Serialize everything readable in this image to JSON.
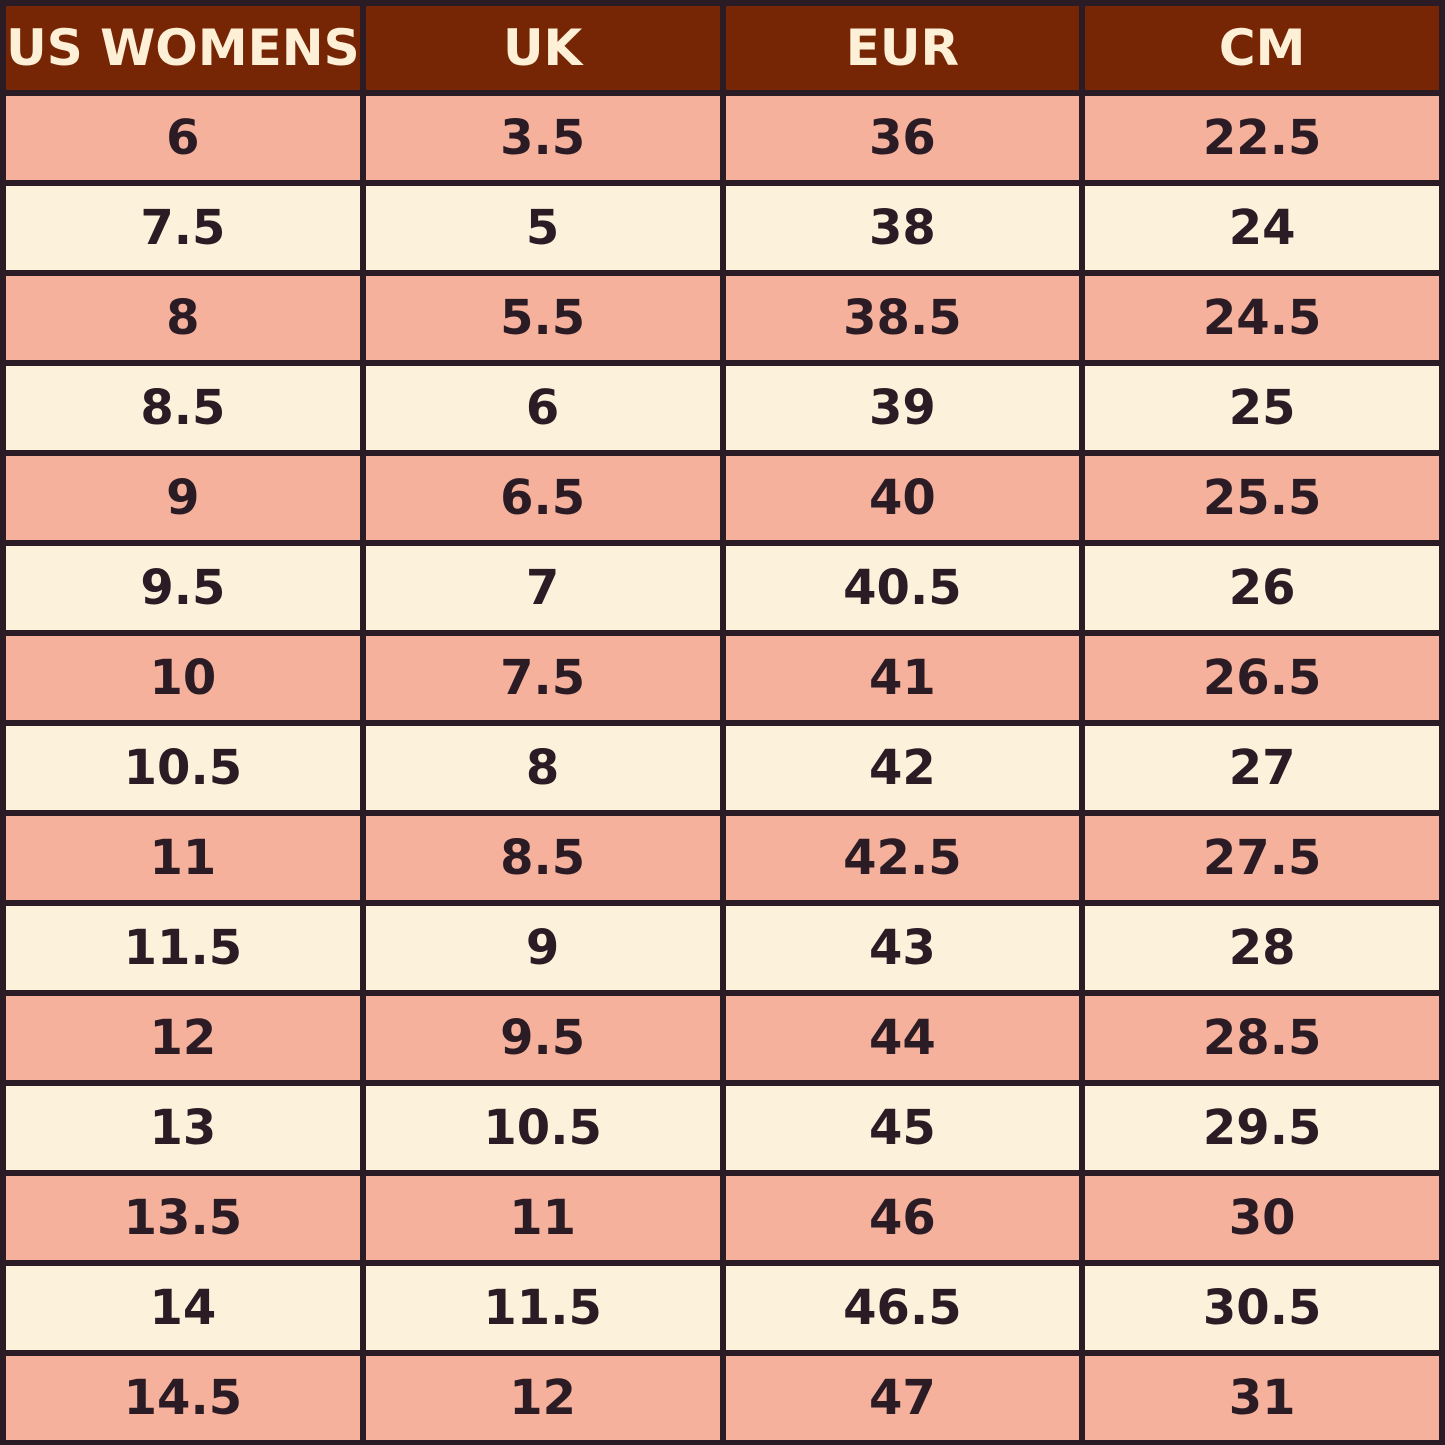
{
  "colors": {
    "header_bg": "#772605",
    "header_text": "#fdf0d6",
    "row_salmon": "#f5b19b",
    "row_cream": "#fcf2dc",
    "cell_text": "#2a1b25",
    "border": "#2a1b25"
  },
  "chart_data": {
    "type": "table",
    "columns": [
      "US WOMENS",
      "UK",
      "EUR",
      "CM"
    ],
    "rows": [
      [
        "6",
        "3.5",
        "36",
        "22.5"
      ],
      [
        "7.5",
        "5",
        "38",
        "24"
      ],
      [
        "8",
        "5.5",
        "38.5",
        "24.5"
      ],
      [
        "8.5",
        "6",
        "39",
        "25"
      ],
      [
        "9",
        "6.5",
        "40",
        "25.5"
      ],
      [
        "9.5",
        "7",
        "40.5",
        "26"
      ],
      [
        "10",
        "7.5",
        "41",
        "26.5"
      ],
      [
        "10.5",
        "8",
        "42",
        "27"
      ],
      [
        "11",
        "8.5",
        "42.5",
        "27.5"
      ],
      [
        "11.5",
        "9",
        "43",
        "28"
      ],
      [
        "12",
        "9.5",
        "44",
        "28.5"
      ],
      [
        "13",
        "10.5",
        "45",
        "29.5"
      ],
      [
        "13.5",
        "11",
        "46",
        "30"
      ],
      [
        "14",
        "11.5",
        "46.5",
        "30.5"
      ],
      [
        "14.5",
        "12",
        "47",
        "31"
      ]
    ]
  }
}
